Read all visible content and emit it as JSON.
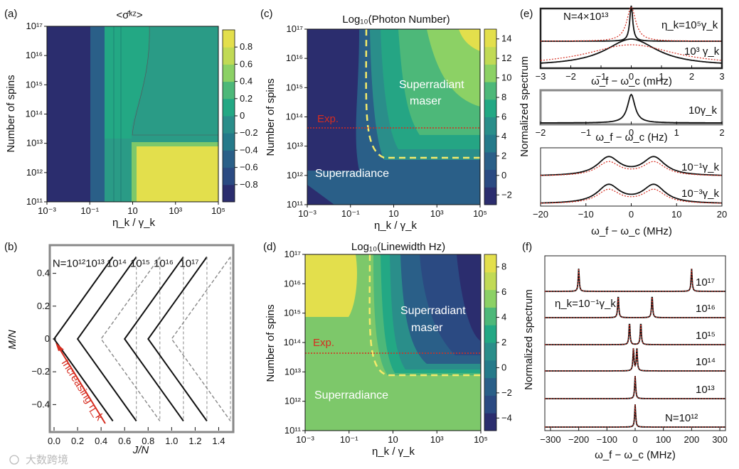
{
  "chart_data": [
    {
      "panel": "(a)",
      "type": "heatmap",
      "title": "<σ̂ᵏᶻ>",
      "xlabel": "η_k / γ_k",
      "ylabel": "Number of spins",
      "x_ticks": [
        "10⁻³",
        "10⁻¹",
        "10",
        "10³",
        "10⁵"
      ],
      "y_ticks": [
        "10¹¹",
        "10¹²",
        "10¹³",
        "10¹⁴",
        "10¹⁵",
        "10¹⁶",
        "10¹⁷"
      ],
      "colorbar_ticks": [
        0.8,
        0.6,
        0.4,
        0.2,
        0,
        -0.2,
        -0.4,
        -0.6,
        -0.8
      ],
      "colorbar_labels": [
        "0.8",
        "0.6",
        "0.4",
        "0.2",
        "0",
        "−0.2",
        "−0.4",
        "−0.6",
        "−0.8"
      ],
      "colorbar_range": [
        -1,
        1
      ]
    },
    {
      "panel": "(b)",
      "type": "line",
      "xlabel": "J/N",
      "ylabel": "M/N",
      "xlim": [
        0,
        1.5
      ],
      "ylim": [
        -0.55,
        0.55
      ],
      "x_ticks": [
        "0.0",
        "0.2",
        "0.4",
        "0.6",
        "0.8",
        "1.0",
        "1.2",
        "1.4"
      ],
      "y_ticks": [
        "0.4",
        "0.2",
        "0",
        "−0.2",
        "−0.4"
      ],
      "series": [
        {
          "name": "N=10¹²",
          "vertex": 0.0,
          "top": 0.5,
          "style": "solid"
        },
        {
          "name": "10¹³",
          "vertex": 0.2,
          "top": 0.5,
          "style": "solid"
        },
        {
          "name": "10¹⁴",
          "vertex": 0.4,
          "top": 0.5,
          "style": "dashed"
        },
        {
          "name": "10¹⁵",
          "vertex": 0.6,
          "top": 0.7,
          "style": "solid"
        },
        {
          "name": "10¹⁶",
          "vertex": 0.8,
          "top": 0.9,
          "style": "solid"
        },
        {
          "name": "10¹⁷",
          "vertex": 1.0,
          "top": 1.1,
          "style": "dashed"
        }
      ],
      "top_labels": [
        "N=10¹²",
        "10¹³",
        "10¹⁴",
        "10¹⁵",
        "10¹⁶",
        "10¹⁷"
      ],
      "annotation": "Increasing η_k"
    },
    {
      "panel": "(c)",
      "type": "heatmap",
      "title": "Log₁₀(Photon Number)",
      "xlabel": "η_k / γ_k",
      "ylabel": "Number of spins",
      "x_ticks": [
        "10⁻³",
        "10⁻¹",
        "10",
        "10³",
        "10⁵"
      ],
      "y_ticks": [
        "10¹¹",
        "10¹²",
        "10¹³",
        "10¹⁴",
        "10¹⁵",
        "10¹⁶",
        "10¹⁷"
      ],
      "colorbar_ticks": [
        14,
        12,
        10,
        8,
        6,
        4,
        2,
        0,
        -2
      ],
      "colorbar_labels": [
        "14",
        "12",
        "10",
        "8",
        "6",
        "4",
        "2",
        "0",
        "−2"
      ],
      "colorbar_range": [
        -3,
        15
      ],
      "annotations": [
        "Superradiant",
        "maser",
        "Superradiance",
        "Exp."
      ],
      "exp_line_log10N": 13.6
    },
    {
      "panel": "(d)",
      "type": "heatmap",
      "title": "Log₁₀(Linewidth Hz)",
      "xlabel": "η_k / γ_k",
      "ylabel": "Number of spins",
      "x_ticks": [
        "10⁻³",
        "10⁻¹",
        "10",
        "10³",
        "10⁵"
      ],
      "y_ticks": [
        "10¹¹",
        "10¹²",
        "10¹³",
        "10¹⁴",
        "10¹⁵",
        "10¹⁶",
        "10¹⁷"
      ],
      "colorbar_ticks": [
        8,
        6,
        4,
        2,
        0,
        -2,
        -4
      ],
      "colorbar_labels": [
        "8",
        "6",
        "4",
        "2",
        "0",
        "−2",
        "−4"
      ],
      "colorbar_range": [
        -5,
        9
      ],
      "annotations": [
        "Superradiant",
        "maser",
        "Superradiance",
        "Exp."
      ],
      "exp_line_log10N": 13.6
    },
    {
      "panel": "(e)",
      "type": "line",
      "ylabel": "Normalized spectrum",
      "subplots": [
        {
          "xlabel": "ω_f − ω_c (mHz)",
          "x_ticks": [
            "−3",
            "−2",
            "−1",
            "0",
            "1",
            "2",
            "3"
          ],
          "labels": [
            "N=4×10¹³",
            "η_k=10⁵γ_k",
            "10³ γ_k"
          ]
        },
        {
          "xlabel": "ω_f − ω_c (Hz)",
          "x_ticks": [
            "−2",
            "−1",
            "0",
            "1",
            "2"
          ],
          "labels": [
            "10γ_k"
          ]
        },
        {
          "xlabel": "ω_f − ω_c (MHz)",
          "x_ticks": [
            "−20",
            "−10",
            "0",
            "10",
            "20"
          ],
          "labels": [
            "10⁻¹γ_k",
            "10⁻³γ_k"
          ]
        }
      ]
    },
    {
      "panel": "(f)",
      "type": "line",
      "ylabel": "Normalized spectrum",
      "xlabel": "ω_f − ω_c (MHz)",
      "x_ticks": [
        "−300",
        "−200",
        "−100",
        "0",
        "100",
        "200",
        "300"
      ],
      "xlim": [
        -320,
        320
      ],
      "series": [
        {
          "name": "10¹⁷",
          "peaks_MHz": [
            -200,
            200
          ]
        },
        {
          "name": "10¹⁶",
          "peaks_MHz": [
            -60,
            60
          ]
        },
        {
          "name": "10¹⁵",
          "peaks_MHz": [
            -20,
            20
          ]
        },
        {
          "name": "10¹⁴",
          "peaks_MHz": [
            -6,
            6
          ]
        },
        {
          "name": "10¹³",
          "peaks_MHz": [
            0
          ]
        },
        {
          "name": "N=10¹²",
          "peaks_MHz": [
            0
          ]
        }
      ],
      "annotation": "η_k=10⁻¹γ_k"
    }
  ],
  "panel_labels": {
    "a": "(a)",
    "b": "(b)",
    "c": "(c)",
    "d": "(d)",
    "e": "(e)",
    "f": "(f)"
  },
  "watermark": "大数跨境",
  "colors": {
    "viridis_low": "#2b2d6e",
    "viridis_mid": "#2a8e8a",
    "viridis_high": "#e8e04d",
    "red": "#d62d20",
    "yellow_dash": "#f3ea6a"
  }
}
